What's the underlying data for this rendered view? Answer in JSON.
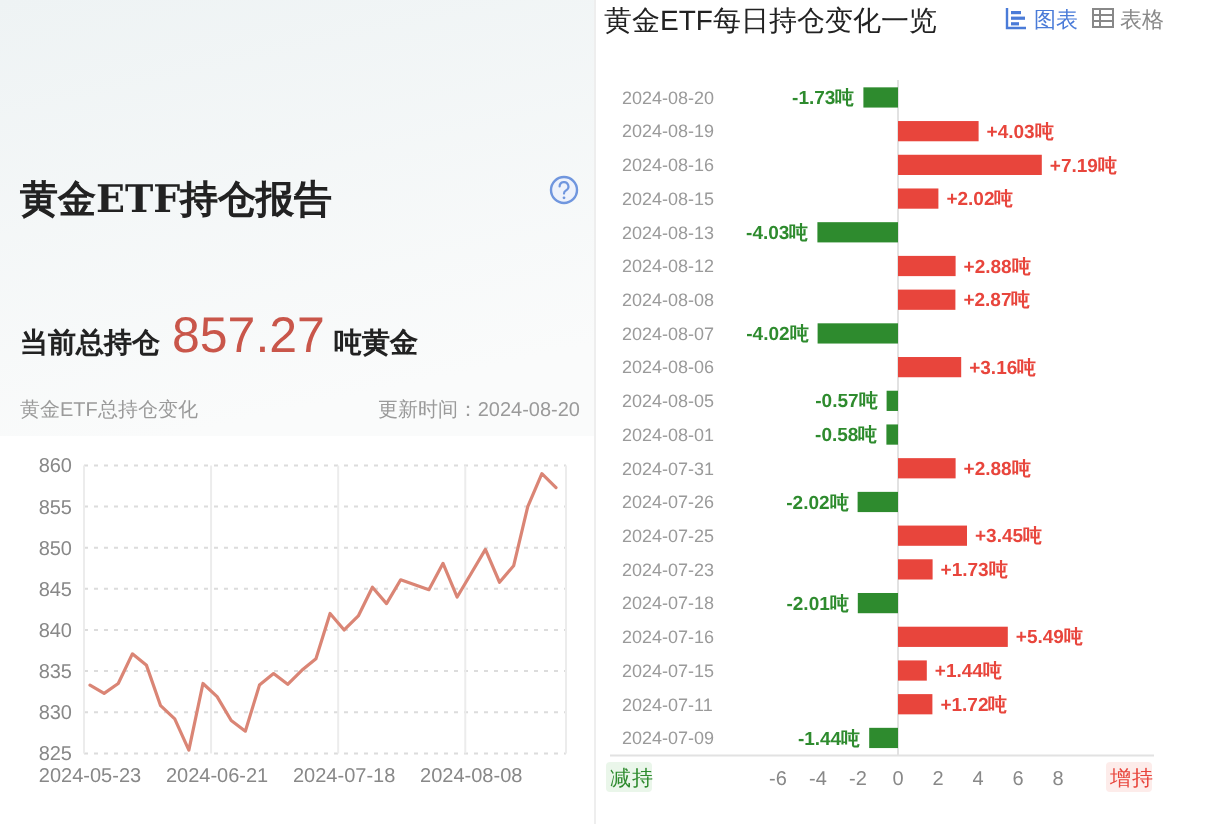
{
  "chart_data": [
    {
      "type": "other",
      "title": "黄金ETF持仓报告",
      "annotations": [
        "当前总持仓",
        "857.27",
        "吨黄金"
      ]
    },
    {
      "type": "line",
      "title": "黄金ETF总持仓变化",
      "annotations": [
        "更新时间：2024-08-20"
      ],
      "categories": [
        "2024-05-23",
        null,
        null,
        null,
        null,
        null,
        null,
        null,
        null,
        "2024-06-21",
        null,
        null,
        null,
        null,
        null,
        null,
        null,
        null,
        "2024-07-18",
        null,
        null,
        null,
        null,
        null,
        null,
        null,
        null,
        "2024-08-08",
        null,
        null,
        null,
        null,
        null,
        null
      ],
      "values": [
        833.3,
        832.3,
        833.5,
        837.1,
        835.7,
        830.8,
        829.2,
        825.4,
        833.5,
        831.9,
        829.0,
        827.7,
        833.3,
        834.7,
        833.4,
        835.1,
        836.5,
        842.0,
        840.0,
        841.7,
        845.2,
        843.2,
        846.1,
        845.5,
        844.9,
        848.1,
        844.0,
        846.9,
        849.8,
        845.8,
        847.8,
        855.0,
        859.0,
        857.3
      ],
      "color": "#da8575",
      "ylim": [
        825,
        860
      ],
      "yticks": [
        825,
        830,
        835,
        840,
        845,
        850,
        855,
        860
      ],
      "grid": true
    },
    {
      "type": "bar",
      "orientation": "horizontal",
      "title": "黄金ETF每日持仓变化一览",
      "annotations": [
        "图表",
        "表格",
        "减持",
        "增持"
      ],
      "categories": [
        "2024-08-20",
        "2024-08-19",
        "2024-08-16",
        "2024-08-15",
        "2024-08-13",
        "2024-08-12",
        "2024-08-08",
        "2024-08-07",
        "2024-08-06",
        "2024-08-05",
        "2024-08-01",
        "2024-07-31",
        "2024-07-26",
        "2024-07-25",
        "2024-07-23",
        "2024-07-18",
        "2024-07-16",
        "2024-07-15",
        "2024-07-11",
        "2024-07-09"
      ],
      "values": [
        -1.73,
        4.03,
        7.19,
        2.02,
        -4.03,
        2.88,
        2.87,
        -4.02,
        3.16,
        -0.57,
        -0.58,
        2.88,
        -2.02,
        3.45,
        1.73,
        -2.01,
        5.49,
        1.44,
        1.72,
        -1.44
      ],
      "colors": [
        "#2e8b2e",
        "#e8453c",
        "#e8453c",
        "#e8453c",
        "#2e8b2e",
        "#e8453c",
        "#e8453c",
        "#2e8b2e",
        "#e8453c",
        "#2e8b2e",
        "#2e8b2e",
        "#e8453c",
        "#2e8b2e",
        "#e8453c",
        "#e8453c",
        "#2e8b2e",
        "#e8453c",
        "#e8453c",
        "#e8453c",
        "#2e8b2e"
      ],
      "value_labels": [
        "-1.73吨",
        "+4.03吨",
        "+7.19吨",
        "+2.02吨",
        "-4.03吨",
        "+2.88吨",
        "+2.87吨",
        "-4.02吨",
        "+3.16吨",
        "-0.57吨",
        "-0.58吨",
        "+2.88吨",
        "-2.02吨",
        "+3.45吨",
        "+1.73吨",
        "-2.01吨",
        "+5.49吨",
        "+1.44吨",
        "+1.72吨",
        "-1.44吨"
      ],
      "xlim": [
        -14.4,
        12.8
      ],
      "xticks": [
        -6,
        -4,
        -2,
        0,
        2,
        4,
        6,
        8
      ]
    }
  ]
}
